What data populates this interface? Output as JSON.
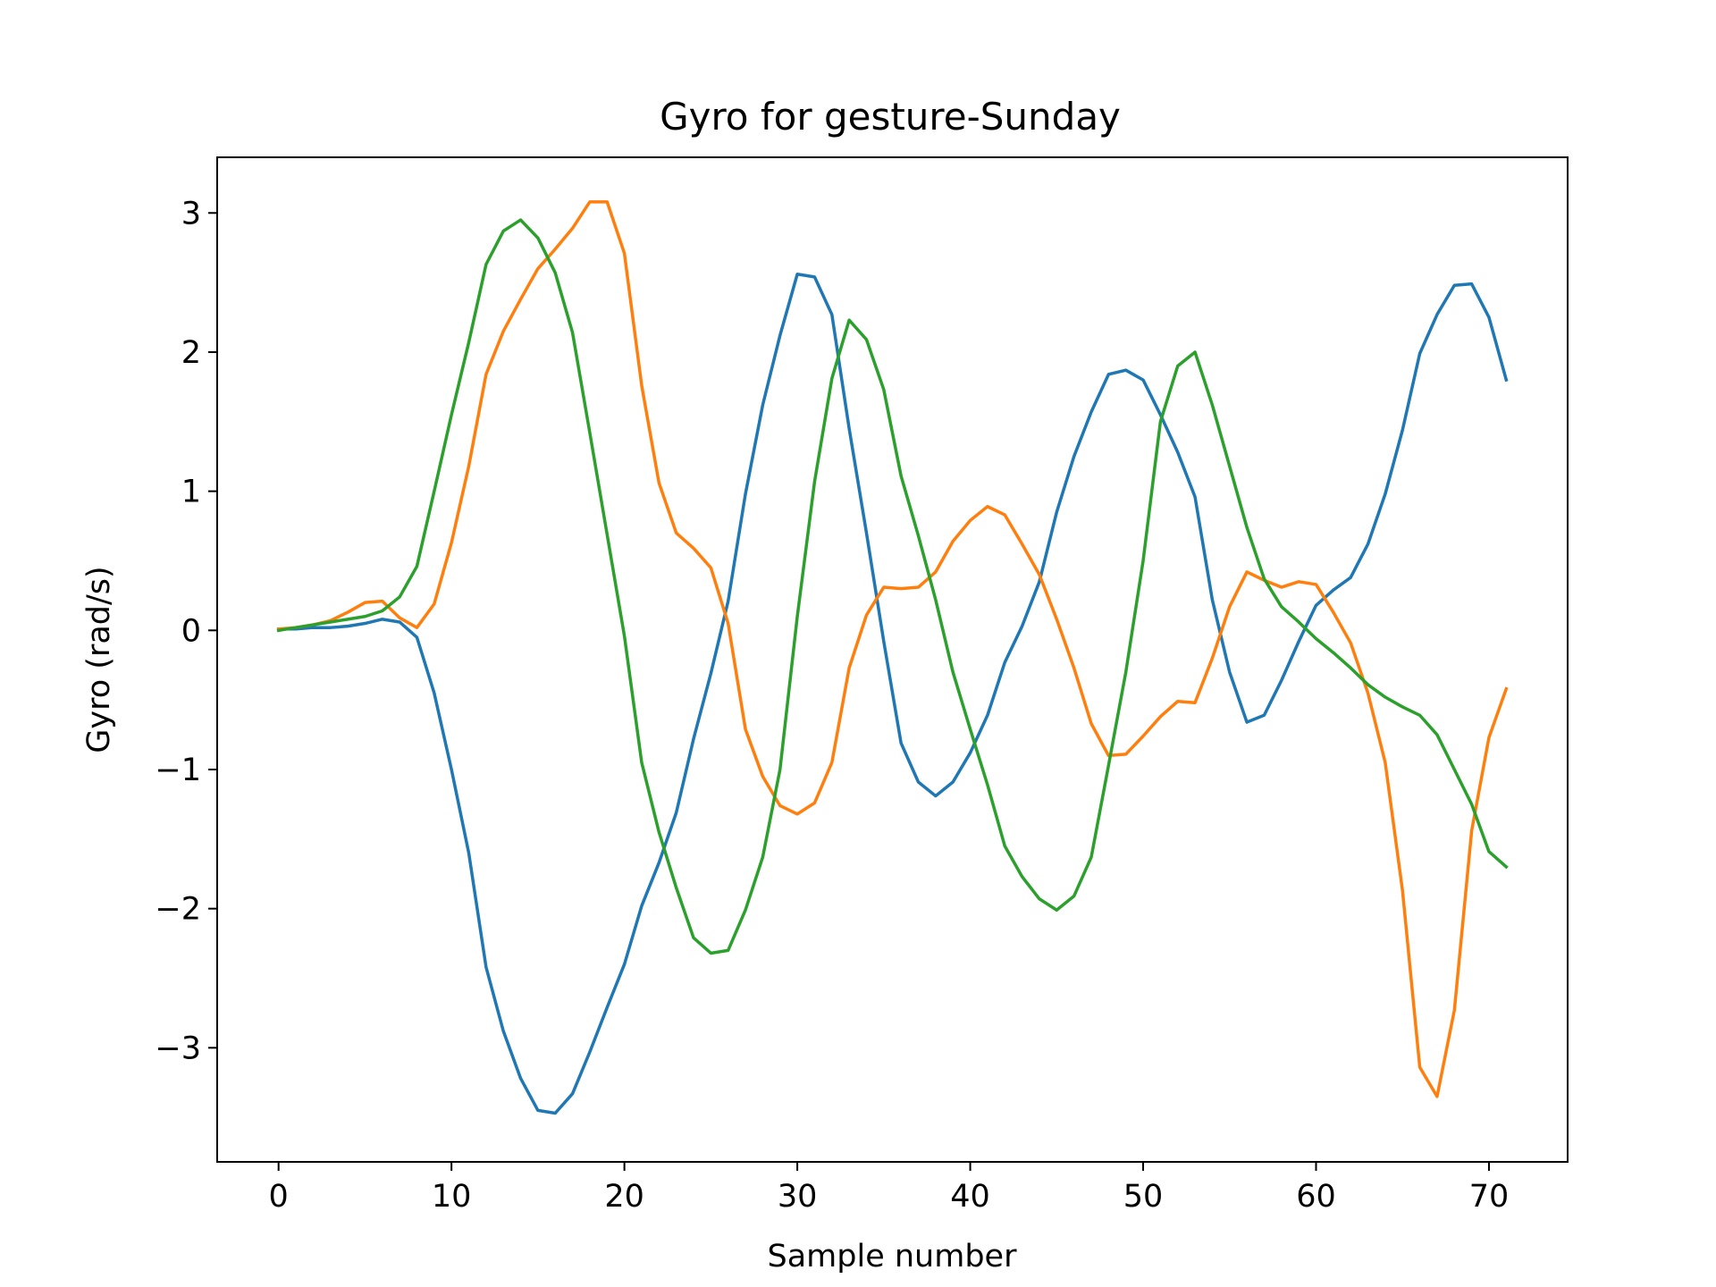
{
  "chart_data": {
    "type": "line",
    "title": "Gyro for gesture-Sunday",
    "xlabel": "Sample number",
    "ylabel": "Gyro  (rad/s)",
    "xlim": [
      -3.55,
      74.55
    ],
    "ylim": [
      -3.82,
      3.4
    ],
    "xticks": [
      0,
      10,
      20,
      30,
      40,
      50,
      60,
      70
    ],
    "yticks": [
      -3,
      -2,
      -1,
      0,
      1,
      2,
      3
    ],
    "grid": false,
    "legend": "none",
    "x": [
      0,
      1,
      2,
      3,
      4,
      5,
      6,
      7,
      8,
      9,
      10,
      11,
      12,
      13,
      14,
      15,
      16,
      17,
      18,
      19,
      20,
      21,
      22,
      23,
      24,
      25,
      26,
      27,
      28,
      29,
      30,
      31,
      32,
      33,
      34,
      35,
      36,
      37,
      38,
      39,
      40,
      41,
      42,
      43,
      44,
      45,
      46,
      47,
      48,
      49,
      50,
      51,
      52,
      53,
      54,
      55,
      56,
      57,
      58,
      59,
      60,
      61,
      62,
      63,
      64,
      65,
      66,
      67,
      68,
      69,
      70,
      71
    ],
    "series": [
      {
        "color": "#1f77b4",
        "values": [
          0.01,
          0.01,
          0.02,
          0.02,
          0.03,
          0.05,
          0.08,
          0.06,
          -0.05,
          -0.45,
          -1.0,
          -1.6,
          -2.42,
          -2.88,
          -3.22,
          -3.45,
          -3.47,
          -3.33,
          -3.03,
          -2.71,
          -2.4,
          -1.98,
          -1.67,
          -1.31,
          -0.78,
          -0.31,
          0.21,
          0.98,
          1.62,
          2.12,
          2.56,
          2.54,
          2.27,
          1.45,
          0.7,
          -0.08,
          -0.81,
          -1.09,
          -1.19,
          -1.09,
          -0.88,
          -0.61,
          -0.23,
          0.03,
          0.35,
          0.85,
          1.25,
          1.57,
          1.84,
          1.87,
          1.8,
          1.55,
          1.28,
          0.96,
          0.22,
          -0.3,
          -0.66,
          -0.61,
          -0.36,
          -0.08,
          0.18,
          0.29,
          0.38,
          0.62,
          0.98,
          1.44,
          1.99,
          2.27,
          2.48,
          2.49,
          2.25,
          1.8
        ]
      },
      {
        "color": "#ff7f0e",
        "values": [
          0.01,
          0.02,
          0.04,
          0.07,
          0.13,
          0.2,
          0.21,
          0.09,
          0.02,
          0.19,
          0.63,
          1.18,
          1.84,
          2.15,
          2.38,
          2.6,
          2.74,
          2.89,
          3.08,
          3.08,
          2.71,
          1.76,
          1.06,
          0.7,
          0.59,
          0.45,
          0.05,
          -0.71,
          -1.05,
          -1.26,
          -1.32,
          -1.24,
          -0.95,
          -0.27,
          0.11,
          0.31,
          0.3,
          0.31,
          0.42,
          0.64,
          0.79,
          0.89,
          0.83,
          0.62,
          0.4,
          0.08,
          -0.27,
          -0.67,
          -0.9,
          -0.89,
          -0.76,
          -0.62,
          -0.51,
          -0.52,
          -0.2,
          0.17,
          0.42,
          0.36,
          0.31,
          0.35,
          0.33,
          0.13,
          -0.09,
          -0.45,
          -0.95,
          -1.87,
          -3.14,
          -3.35,
          -2.73,
          -1.44,
          -0.77,
          -0.42
        ]
      },
      {
        "color": "#2ca02c",
        "values": [
          0.0,
          0.02,
          0.04,
          0.06,
          0.08,
          0.1,
          0.14,
          0.24,
          0.46,
          1.0,
          1.55,
          2.07,
          2.63,
          2.87,
          2.95,
          2.82,
          2.57,
          2.14,
          1.42,
          0.69,
          -0.04,
          -0.95,
          -1.45,
          -1.85,
          -2.21,
          -2.32,
          -2.3,
          -2.01,
          -1.63,
          -1.0,
          0.1,
          1.07,
          1.81,
          2.23,
          2.09,
          1.73,
          1.11,
          0.68,
          0.22,
          -0.3,
          -0.71,
          -1.11,
          -1.55,
          -1.77,
          -1.93,
          -2.01,
          -1.91,
          -1.63,
          -0.97,
          -0.3,
          0.5,
          1.5,
          1.9,
          2.0,
          1.62,
          1.18,
          0.74,
          0.37,
          0.17,
          0.06,
          -0.06,
          -0.16,
          -0.27,
          -0.39,
          -0.48,
          -0.55,
          -0.61,
          -0.75,
          -1.0,
          -1.25,
          -1.59,
          -1.7
        ]
      }
    ]
  }
}
